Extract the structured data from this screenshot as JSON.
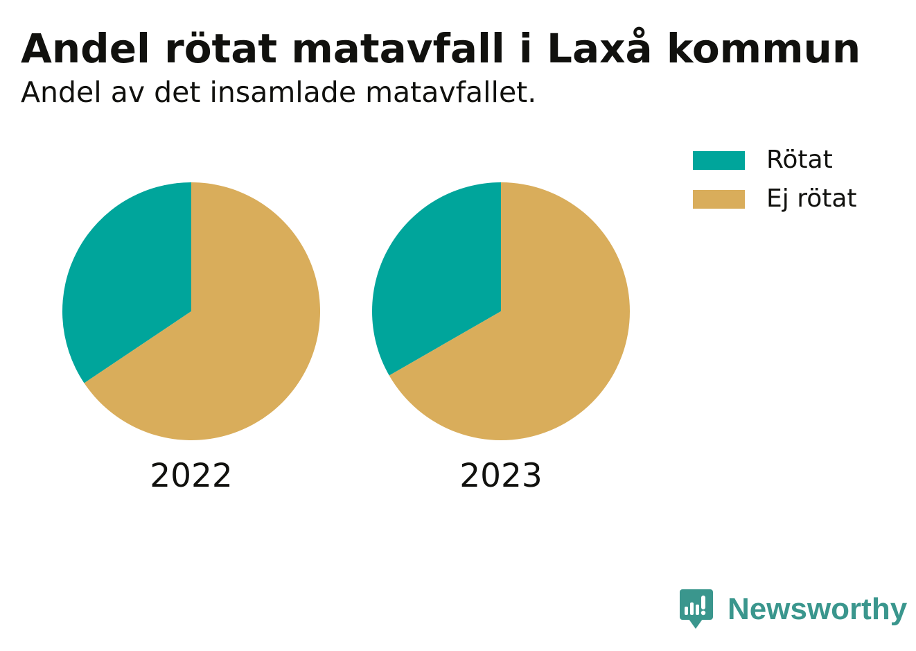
{
  "title": "Andel rötat matavfall i Laxå kommun",
  "subtitle": "Andel av det insamlade matavfallet.",
  "chart_data": {
    "type": "pie",
    "title": "Andel rötat matavfall i Laxå kommun",
    "subtitle": "Andel av det insamlade matavfallet.",
    "categories": [
      "Rötat",
      "Ej rötat"
    ],
    "colors": {
      "Rötat": "#00a59b",
      "Ej rötat": "#d9ad5b"
    },
    "pies": [
      {
        "label": "2022",
        "values": [
          34.4,
          65.6
        ]
      },
      {
        "label": "2023",
        "values": [
          33.3,
          66.7
        ]
      }
    ],
    "legend_position": "top-right"
  },
  "legend": {
    "items": [
      {
        "label": "Rötat",
        "color": "#00a59b"
      },
      {
        "label": "Ej rötat",
        "color": "#d9ad5b"
      }
    ]
  },
  "logo": {
    "text": "Newsworthy",
    "icon": "newsworthy-logo-icon",
    "color": "#3a968d"
  }
}
